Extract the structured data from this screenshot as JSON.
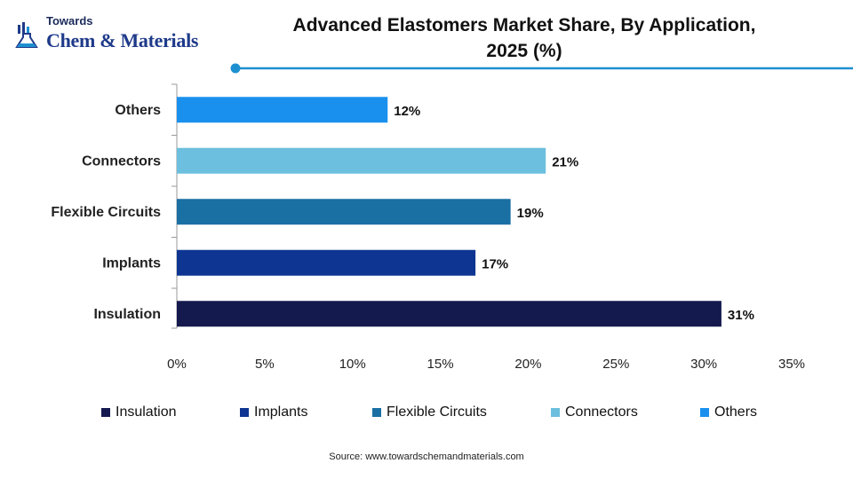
{
  "logo": {
    "top_word": "Towards",
    "main_word": "Chem & Materials",
    "icon": "flask-icon"
  },
  "title_line1": "Advanced Elastomers Market Share, By Application,",
  "title_line2": "2025 (%)",
  "source": "Source: www.towardschemandmaterials.com",
  "colors": {
    "accent": "#1e90d0",
    "Insulation": "#141a4e",
    "Implants": "#0d3591",
    "Flexible Circuits": "#1a6fa3",
    "Connectors": "#6cbfde",
    "Others": "#1a90ee"
  },
  "chart_data": {
    "type": "bar",
    "orientation": "horizontal",
    "title": "Advanced Elastomers Market Share, By Application, 2025 (%)",
    "categories": [
      "Others",
      "Connectors",
      "Flexible Circuits",
      "Implants",
      "Insulation"
    ],
    "values": [
      12,
      21,
      19,
      17,
      31
    ],
    "data_labels": [
      "12%",
      "21%",
      "19%",
      "17%",
      "31%"
    ],
    "x_ticks": [
      "0%",
      "5%",
      "10%",
      "15%",
      "20%",
      "25%",
      "30%",
      "35%"
    ],
    "xlim": [
      0,
      35
    ],
    "grid": false,
    "legend_position": "bottom",
    "legend": [
      "Insulation",
      "Implants",
      "Flexible Circuits",
      "Connectors",
      "Others"
    ]
  }
}
